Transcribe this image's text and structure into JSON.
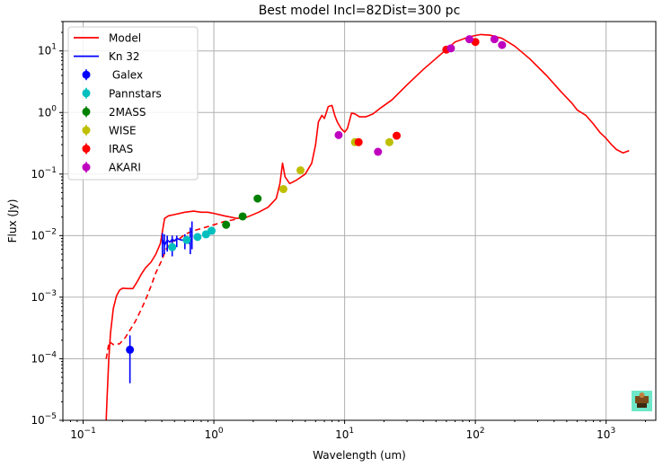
{
  "chart_data": {
    "type": "scatter",
    "title": "Best model  Incl=82Dist=300 pc",
    "xlabel": "Wavelength (um)",
    "ylabel": "Flux (Jy)",
    "xscale": "log",
    "yscale": "log",
    "xlim": [
      0.07,
      2400
    ],
    "ylim": [
      1e-05,
      30
    ],
    "grid": true,
    "legend_location": "upper-left",
    "x_ticks": [
      {
        "value": 0.1,
        "base": "10",
        "exp": "−1"
      },
      {
        "value": 1,
        "base": "10",
        "exp": "0"
      },
      {
        "value": 10,
        "base": "10",
        "exp": "1"
      },
      {
        "value": 100,
        "base": "10",
        "exp": "2"
      },
      {
        "value": 1000,
        "base": "10",
        "exp": "3"
      }
    ],
    "y_ticks": [
      {
        "value": 1e-05,
        "base": "10",
        "exp": "−5"
      },
      {
        "value": 0.0001,
        "base": "10",
        "exp": "−4"
      },
      {
        "value": 0.001,
        "base": "10",
        "exp": "−3"
      },
      {
        "value": 0.01,
        "base": "10",
        "exp": "−2"
      },
      {
        "value": 0.1,
        "base": "10",
        "exp": "−1"
      },
      {
        "value": 1,
        "base": "10",
        "exp": "0"
      },
      {
        "value": 10,
        "base": "10",
        "exp": "1"
      }
    ],
    "lines": [
      {
        "name": "Model",
        "color": "#ff0000",
        "style": "solid",
        "points": [
          [
            0.15,
            1e-05
          ],
          [
            0.152,
            2e-05
          ],
          [
            0.157,
            0.0001
          ],
          [
            0.162,
            0.00026
          ],
          [
            0.17,
            0.00065
          ],
          [
            0.18,
            0.00105
          ],
          [
            0.19,
            0.0013
          ],
          [
            0.2,
            0.0014
          ],
          [
            0.22,
            0.00138
          ],
          [
            0.24,
            0.00138
          ],
          [
            0.26,
            0.0018
          ],
          [
            0.28,
            0.0024
          ],
          [
            0.3,
            0.003
          ],
          [
            0.33,
            0.0037
          ],
          [
            0.36,
            0.005
          ],
          [
            0.39,
            0.0075
          ],
          [
            0.41,
            0.014
          ],
          [
            0.42,
            0.019
          ],
          [
            0.45,
            0.021
          ],
          [
            0.5,
            0.022
          ],
          [
            0.6,
            0.024
          ],
          [
            0.7,
            0.025
          ],
          [
            0.8,
            0.024
          ],
          [
            0.9,
            0.024
          ],
          [
            1.0,
            0.023
          ],
          [
            1.2,
            0.021
          ],
          [
            1.5,
            0.019
          ],
          [
            1.8,
            0.02
          ],
          [
            2.2,
            0.024
          ],
          [
            2.6,
            0.029
          ],
          [
            3.0,
            0.04
          ],
          [
            3.2,
            0.07
          ],
          [
            3.35,
            0.15
          ],
          [
            3.5,
            0.09
          ],
          [
            3.8,
            0.07
          ],
          [
            4.3,
            0.08
          ],
          [
            5.0,
            0.1
          ],
          [
            5.6,
            0.15
          ],
          [
            6.0,
            0.3
          ],
          [
            6.3,
            0.7
          ],
          [
            6.7,
            0.9
          ],
          [
            7.0,
            0.8
          ],
          [
            7.5,
            1.25
          ],
          [
            8.0,
            1.3
          ],
          [
            8.4,
            0.9
          ],
          [
            8.8,
            0.7
          ],
          [
            9.4,
            0.55
          ],
          [
            10.0,
            0.48
          ],
          [
            10.5,
            0.55
          ],
          [
            11.3,
            0.98
          ],
          [
            12.0,
            0.95
          ],
          [
            13.0,
            0.85
          ],
          [
            14.5,
            0.85
          ],
          [
            16.5,
            0.95
          ],
          [
            19.0,
            1.2
          ],
          [
            23.0,
            1.6
          ],
          [
            30.0,
            2.8
          ],
          [
            40.0,
            5.0
          ],
          [
            55.0,
            9.0
          ],
          [
            70.0,
            14.0
          ],
          [
            90.0,
            17.0
          ],
          [
            110.0,
            18.5
          ],
          [
            130.0,
            18.0
          ],
          [
            160.0,
            16.0
          ],
          [
            200.0,
            12.0
          ],
          [
            260.0,
            7.5
          ],
          [
            350.0,
            4.0
          ],
          [
            450.0,
            2.2
          ],
          [
            550.0,
            1.4
          ],
          [
            600.0,
            1.1
          ],
          [
            700.0,
            0.9
          ],
          [
            800.0,
            0.65
          ],
          [
            900.0,
            0.47
          ],
          [
            1000.0,
            0.38
          ],
          [
            1100.0,
            0.3
          ],
          [
            1200.0,
            0.25
          ],
          [
            1350.0,
            0.22
          ],
          [
            1500.0,
            0.24
          ]
        ]
      },
      {
        "name": "",
        "color": "#ff0000",
        "style": "dashed",
        "points": [
          [
            0.15,
            0.0001
          ],
          [
            0.158,
            0.00019
          ],
          [
            0.17,
            0.00017
          ],
          [
            0.19,
            0.000175
          ],
          [
            0.21,
            0.00022
          ],
          [
            0.25,
            0.0004
          ],
          [
            0.28,
            0.00065
          ],
          [
            0.3,
            0.0009
          ],
          [
            0.33,
            0.0015
          ],
          [
            0.36,
            0.0025
          ],
          [
            0.4,
            0.004
          ],
          [
            0.43,
            0.006
          ],
          [
            0.48,
            0.008
          ],
          [
            0.55,
            0.009
          ],
          [
            0.6,
            0.0105
          ],
          [
            0.7,
            0.012
          ],
          [
            0.8,
            0.013
          ],
          [
            0.9,
            0.014
          ],
          [
            1.0,
            0.015
          ],
          [
            1.2,
            0.017
          ],
          [
            1.5,
            0.0185
          ]
        ]
      },
      {
        "name": "Kn 32",
        "color": "#0000ff",
        "style": "solid",
        "points": [
          [
            0.4,
            0.009
          ],
          [
            0.42,
            0.007
          ],
          [
            0.44,
            0.0085
          ],
          [
            0.46,
            0.0078
          ],
          [
            0.48,
            0.0088
          ],
          [
            0.5,
            0.0082
          ],
          [
            0.52,
            0.009
          ],
          [
            0.55,
            0.0086
          ],
          [
            0.58,
            0.0084
          ],
          [
            0.62,
            0.008
          ],
          [
            0.65,
            0.0075
          ],
          [
            0.68,
            0.0088
          ]
        ]
      }
    ],
    "errorbars": [
      {
        "x": 0.228,
        "low": 4e-05,
        "high": 0.00024,
        "color": "#0000ff"
      },
      {
        "x": 0.404,
        "low": 0.0045,
        "high": 0.011,
        "color": "#0000ff"
      },
      {
        "x": 0.418,
        "low": 0.005,
        "high": 0.0105,
        "color": "#0000ff"
      },
      {
        "x": 0.44,
        "low": 0.0055,
        "high": 0.01,
        "color": "#0000ff"
      },
      {
        "x": 0.48,
        "low": 0.0046,
        "high": 0.01,
        "color": "#0000ff"
      },
      {
        "x": 0.52,
        "low": 0.0065,
        "high": 0.01,
        "color": "#0000ff"
      },
      {
        "x": 0.6,
        "low": 0.006,
        "high": 0.0105,
        "color": "#0000ff"
      },
      {
        "x": 0.66,
        "low": 0.005,
        "high": 0.0135,
        "color": "#0000ff"
      },
      {
        "x": 0.68,
        "low": 0.006,
        "high": 0.017,
        "color": "#0000ff"
      }
    ],
    "series": [
      {
        "name": " Galex",
        "color": "#0000ff",
        "points": [
          [
            0.228,
            0.00014
          ]
        ]
      },
      {
        "name": "Pannstars",
        "color": "#00bfbf",
        "points": [
          [
            0.48,
            0.0065
          ],
          [
            0.62,
            0.0085
          ],
          [
            0.75,
            0.0095
          ],
          [
            0.87,
            0.0105
          ],
          [
            0.96,
            0.012
          ]
        ]
      },
      {
        "name": "2MASS",
        "color": "#008000",
        "points": [
          [
            1.24,
            0.015
          ],
          [
            1.66,
            0.0205
          ],
          [
            2.16,
            0.04
          ]
        ]
      },
      {
        "name": "WISE",
        "color": "#bfbf00",
        "points": [
          [
            3.4,
            0.057
          ],
          [
            4.6,
            0.115
          ],
          [
            12.0,
            0.33
          ],
          [
            22.0,
            0.33
          ]
        ]
      },
      {
        "name": "IRAS",
        "color": "#ff0000",
        "points": [
          [
            12.8,
            0.33
          ],
          [
            25.0,
            0.42
          ],
          [
            60.0,
            10.5
          ],
          [
            100.0,
            14.0
          ]
        ]
      },
      {
        "name": "AKARI",
        "color": "#bf00bf",
        "points": [
          [
            9.0,
            0.43
          ],
          [
            18.0,
            0.23
          ],
          [
            65.0,
            11.0
          ],
          [
            90.0,
            15.5
          ],
          [
            140.0,
            15.5
          ],
          [
            160.0,
            12.5
          ]
        ]
      }
    ]
  },
  "badge": {
    "icon": "logo-badge-icon",
    "background": "#6ee8c8"
  }
}
